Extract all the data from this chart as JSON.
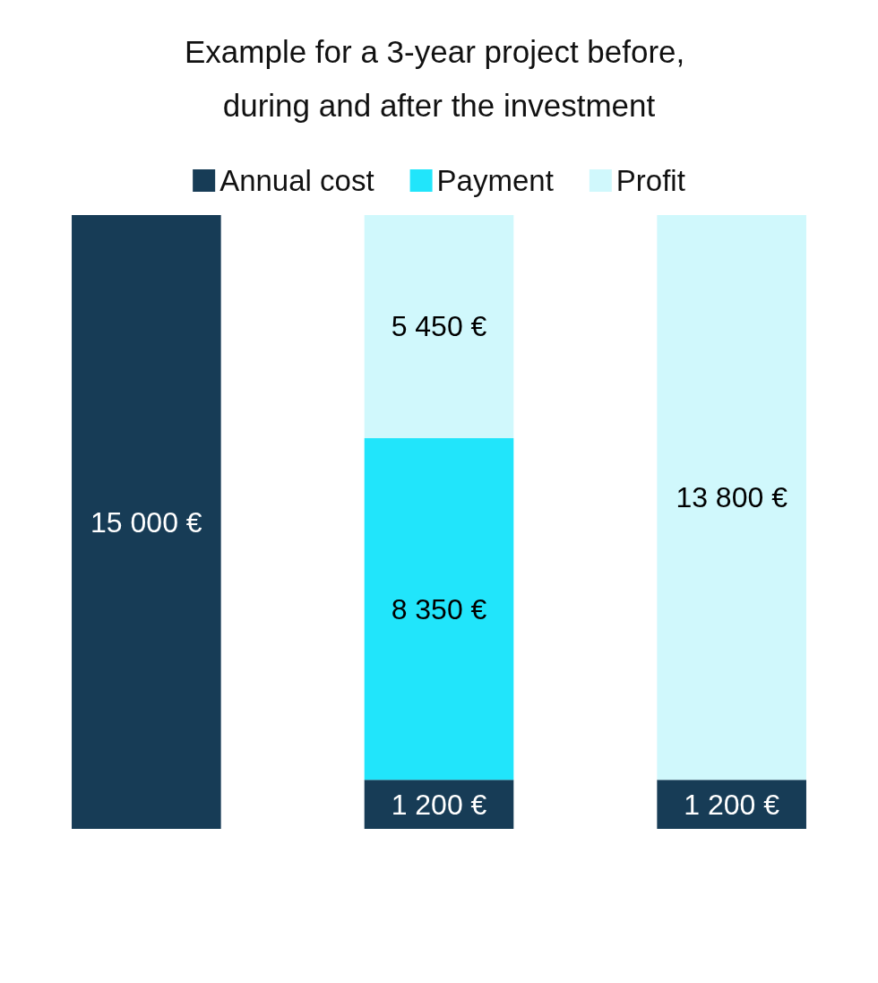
{
  "chart_data": {
    "type": "bar",
    "title": "Example for a 3-year project before, during and after the investment",
    "categories": [
      null,
      null,
      null
    ],
    "series": [
      {
        "name": "Annual cost",
        "color": "#173c56",
        "values": [
          15000,
          1200,
          1200
        ],
        "value_labels": [
          "15 000 €",
          "1 200 €",
          "1 200 €"
        ]
      },
      {
        "name": "Payment",
        "color": "#21e5fb",
        "values": [
          null,
          8350,
          null
        ],
        "value_labels": [
          null,
          "8 350 €",
          null
        ]
      },
      {
        "name": "Profit",
        "color": "#d0f8fc",
        "values": [
          null,
          5450,
          13800
        ],
        "value_labels": [
          null,
          "5 450 €",
          "13 800 €"
        ]
      }
    ],
    "stacked": true,
    "ylim": [
      0,
      15000
    ],
    "legend": "top",
    "tick_labels": false
  }
}
